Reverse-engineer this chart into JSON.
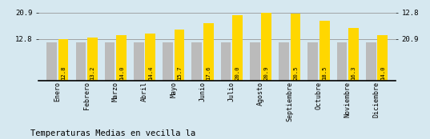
{
  "months": [
    "Enero",
    "Febrero",
    "Marzo",
    "Abril",
    "Mayo",
    "Junio",
    "Julio",
    "Agosto",
    "Septiembre",
    "Octubre",
    "Noviembre",
    "Diciembre"
  ],
  "values": [
    12.8,
    13.2,
    14.0,
    14.4,
    15.7,
    17.6,
    20.0,
    20.9,
    20.5,
    18.5,
    16.3,
    14.0
  ],
  "gray_values": [
    11.8,
    11.8,
    11.8,
    11.8,
    11.8,
    11.8,
    11.8,
    11.8,
    11.8,
    11.8,
    11.8,
    11.8
  ],
  "bar_color_gold": "#FFD700",
  "bar_color_gray": "#BBBBBB",
  "background_color": "#D6E8F0",
  "title": "Temperaturas Medias en vecilla la",
  "title_fontsize": 7.5,
  "ylim_min": 0,
  "ylim_max": 23.5,
  "yticks": [
    12.8,
    20.9
  ],
  "grid_color": "#999999",
  "value_label_fontsize": 5.2,
  "axis_label_fontsize": 6.0,
  "right_ytick_labels": [
    "20.9",
    "12.8"
  ]
}
